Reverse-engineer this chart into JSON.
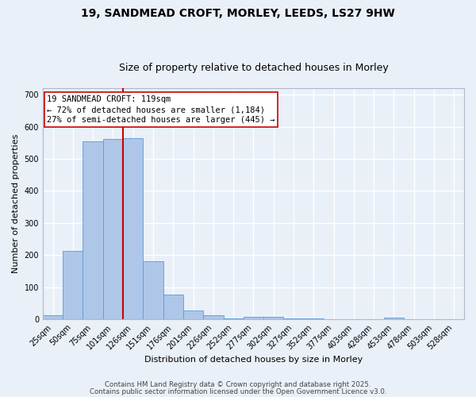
{
  "title_line1": "19, SANDMEAD CROFT, MORLEY, LEEDS, LS27 9HW",
  "title_line2": "Size of property relative to detached houses in Morley",
  "xlabel": "Distribution of detached houses by size in Morley",
  "ylabel": "Number of detached properties",
  "categories": [
    "25sqm",
    "50sqm",
    "75sqm",
    "101sqm",
    "126sqm",
    "151sqm",
    "176sqm",
    "201sqm",
    "226sqm",
    "252sqm",
    "277sqm",
    "302sqm",
    "327sqm",
    "352sqm",
    "377sqm",
    "403sqm",
    "428sqm",
    "453sqm",
    "478sqm",
    "503sqm",
    "528sqm"
  ],
  "values": [
    12,
    212,
    555,
    562,
    565,
    182,
    76,
    28,
    12,
    2,
    8,
    8,
    2,
    2,
    0,
    0,
    0,
    5,
    0,
    0,
    0
  ],
  "bar_color": "#aec6e8",
  "bar_edge_color": "#5b9bd5",
  "red_line_index": 4,
  "red_line_color": "#cc0000",
  "annotation_line1": "19 SANDMEAD CROFT: 119sqm",
  "annotation_line2": "← 72% of detached houses are smaller (1,184)",
  "annotation_line3": "27% of semi-detached houses are larger (445) →",
  "annotation_box_color": "#ffffff",
  "annotation_box_edge": "#cc0000",
  "ylim": [
    0,
    720
  ],
  "yticks": [
    0,
    100,
    200,
    300,
    400,
    500,
    600,
    700
  ],
  "background_color": "#eaf0f8",
  "grid_color": "#ffffff",
  "footer_line1": "Contains HM Land Registry data © Crown copyright and database right 2025.",
  "footer_line2": "Contains public sector information licensed under the Open Government Licence v3.0.",
  "title_fontsize": 10,
  "subtitle_fontsize": 9,
  "axis_label_fontsize": 8,
  "tick_fontsize": 7,
  "annotation_fontsize": 7.5
}
